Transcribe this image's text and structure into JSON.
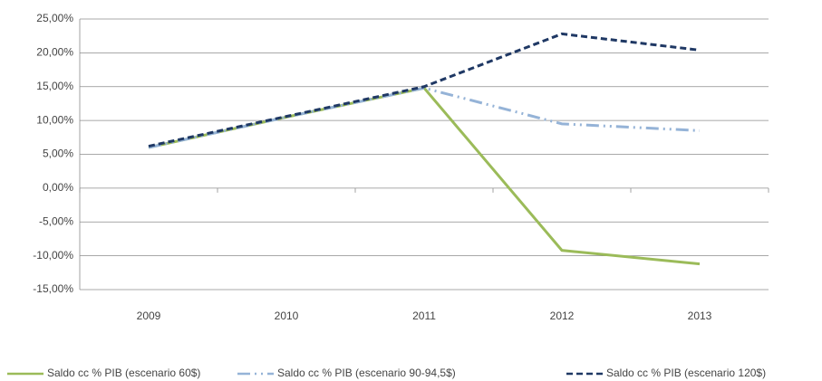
{
  "chart_data": {
    "type": "line",
    "categories": [
      "2009",
      "2010",
      "2011",
      "2012",
      "2013"
    ],
    "series": [
      {
        "name": "Saldo cc % PIB (escenario 60$)",
        "color": "#9bbb59",
        "dash": "solid",
        "values": [
          6.0,
          10.5,
          14.8,
          -9.2,
          -11.2
        ]
      },
      {
        "name": "Saldo cc % PIB (escenario 90-94,5$)",
        "color": "#95b3d7",
        "dash": "dash-dot-dot",
        "values": [
          6.0,
          10.5,
          14.8,
          9.5,
          8.5
        ]
      },
      {
        "name": "Saldo cc % PIB (escenario 120$)",
        "color": "#1f3864",
        "dash": "dash",
        "values": [
          6.2,
          10.6,
          15.0,
          22.8,
          20.4
        ]
      }
    ],
    "ylim": [
      -15,
      25
    ],
    "yticks": [
      {
        "value": -15,
        "label": "-15,00%"
      },
      {
        "value": -10,
        "label": "-10,00%"
      },
      {
        "value": -5,
        "label": "-5,00%"
      },
      {
        "value": 0,
        "label": "0,00%"
      },
      {
        "value": 5,
        "label": "5,00%"
      },
      {
        "value": 10,
        "label": "10,00%"
      },
      {
        "value": 15,
        "label": "15,00%"
      },
      {
        "value": 20,
        "label": "20,00%"
      },
      {
        "value": 25,
        "label": "25,00%"
      }
    ],
    "grid": true,
    "legend": "bottom"
  }
}
